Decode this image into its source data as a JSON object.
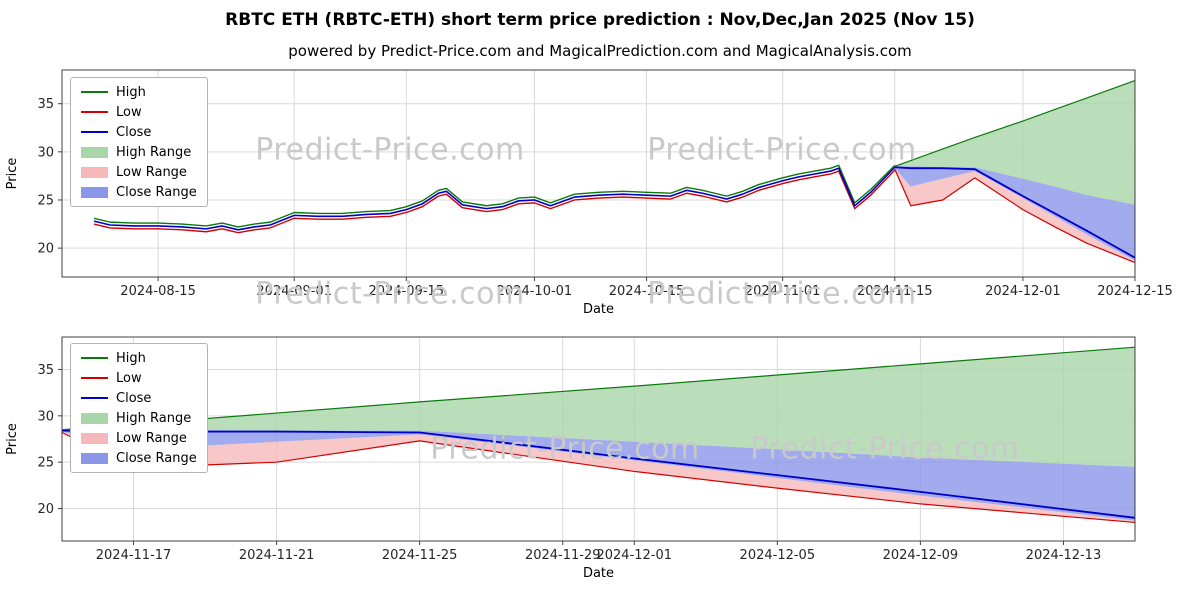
{
  "header": {
    "title": "RBTC ETH (RBTC-ETH) short term price prediction : Nov,Dec,Jan 2025 (Nov 15)",
    "subtitle": "powered by Predict-Price.com and MagicalPrediction.com and MagicalAnalysis.com"
  },
  "watermark": {
    "text": "Predict-Price.com"
  },
  "colors": {
    "high_line": "#0a7a0a",
    "low_line": "#d40000",
    "close_line": "#0000c8",
    "high_range": "#a9d6a9",
    "low_range": "#f6b9b9",
    "close_range": "#8a96e8",
    "grid": "#d9d9d9",
    "spine": "#404040"
  },
  "legend": {
    "items": [
      {
        "label": "High",
        "kind": "line",
        "color": "#0a7a0a"
      },
      {
        "label": "Low",
        "kind": "line",
        "color": "#d40000"
      },
      {
        "label": "Close",
        "kind": "line",
        "color": "#0000c8"
      },
      {
        "label": "High Range",
        "kind": "patch",
        "color": "#a9d6a9"
      },
      {
        "label": "Low Range",
        "kind": "patch",
        "color": "#f6b9b9"
      },
      {
        "label": "Close Range",
        "kind": "patch",
        "color": "#8a96e8"
      }
    ]
  },
  "chart_data": [
    {
      "type": "line",
      "title": "",
      "xlabel": "Date",
      "ylabel": "Price",
      "grid": true,
      "legend_position": "upper left",
      "ylim": [
        17,
        38.5
      ],
      "yticks": [
        20,
        25,
        30,
        35
      ],
      "x_epoch": "2024-08-03",
      "xlim_days": [
        0,
        134
      ],
      "xticks": [
        {
          "d": 12,
          "label": "2024-08-15"
        },
        {
          "d": 29,
          "label": "2024-09-01"
        },
        {
          "d": 43,
          "label": "2024-09-15"
        },
        {
          "d": 59,
          "label": "2024-10-01"
        },
        {
          "d": 73,
          "label": "2024-10-15"
        },
        {
          "d": 90,
          "label": "2024-11-01"
        },
        {
          "d": 104,
          "label": "2024-11-15"
        },
        {
          "d": 120,
          "label": "2024-12-01"
        },
        {
          "d": 134,
          "label": "2024-12-15"
        }
      ],
      "series": {
        "historical": {
          "days": [
            4,
            6,
            9,
            12,
            15,
            18,
            20,
            22,
            24,
            26,
            29,
            32,
            35,
            38,
            41,
            43,
            45,
            47,
            48,
            50,
            53,
            55,
            57,
            59,
            61,
            64,
            67,
            70,
            73,
            76,
            78,
            80,
            83,
            85,
            87,
            90,
            92,
            94,
            96,
            97,
            99,
            101,
            104
          ],
          "high": [
            23.1,
            22.7,
            22.6,
            22.6,
            22.5,
            22.3,
            22.6,
            22.2,
            22.5,
            22.7,
            23.7,
            23.6,
            23.6,
            23.8,
            23.9,
            24.3,
            24.9,
            26.0,
            26.2,
            24.8,
            24.4,
            24.6,
            25.2,
            25.3,
            24.7,
            25.6,
            25.8,
            25.9,
            25.8,
            25.7,
            26.3,
            26.0,
            25.4,
            25.9,
            26.6,
            27.3,
            27.7,
            28.0,
            28.3,
            28.6,
            24.7,
            26.1,
            28.6
          ],
          "low": [
            22.5,
            22.1,
            22.0,
            22.0,
            21.9,
            21.7,
            22.0,
            21.6,
            21.9,
            22.1,
            23.1,
            23.0,
            23.0,
            23.2,
            23.3,
            23.7,
            24.3,
            25.4,
            25.6,
            24.2,
            23.8,
            24.0,
            24.6,
            24.7,
            24.1,
            25.0,
            25.2,
            25.3,
            25.2,
            25.1,
            25.7,
            25.4,
            24.8,
            25.3,
            26.0,
            26.7,
            27.1,
            27.4,
            27.7,
            28.0,
            24.1,
            25.5,
            28.1
          ],
          "close": [
            22.8,
            22.4,
            22.3,
            22.3,
            22.2,
            22.0,
            22.3,
            21.9,
            22.2,
            22.4,
            23.4,
            23.3,
            23.3,
            23.5,
            23.6,
            24.0,
            24.6,
            25.7,
            25.9,
            24.5,
            24.1,
            24.3,
            24.9,
            25.0,
            24.4,
            25.3,
            25.5,
            25.6,
            25.5,
            25.4,
            26.0,
            25.7,
            25.1,
            25.6,
            26.3,
            27.0,
            27.4,
            27.7,
            28.0,
            28.3,
            24.4,
            25.8,
            28.4
          ]
        },
        "forecast": {
          "days": [
            104,
            106,
            110,
            114,
            120,
            124,
            128,
            134
          ],
          "close": [
            28.4,
            28.3,
            28.3,
            28.2,
            25.4,
            23.6,
            21.8,
            19.0
          ],
          "close_upper": [
            28.5,
            28.5,
            28.4,
            28.4,
            27.2,
            26.4,
            25.5,
            24.5
          ],
          "close_lower": [
            28.3,
            26.4,
            27.2,
            28.0,
            25.2,
            23.3,
            21.4,
            18.7
          ],
          "high_upper": [
            28.5,
            29.1,
            30.3,
            31.5,
            33.2,
            34.4,
            35.6,
            37.4
          ],
          "low_lower": [
            28.2,
            24.4,
            25.0,
            27.3,
            24.0,
            22.2,
            20.5,
            18.5
          ]
        }
      }
    },
    {
      "type": "line",
      "title": "",
      "xlabel": "Date",
      "ylabel": "Price",
      "grid": true,
      "legend_position": "upper left",
      "ylim": [
        16.5,
        38.5
      ],
      "yticks": [
        20,
        25,
        30,
        35
      ],
      "x_epoch": "2024-11-15",
      "xlim_days": [
        0,
        30
      ],
      "xticks": [
        {
          "d": 2,
          "label": "2024-11-17"
        },
        {
          "d": 6,
          "label": "2024-11-21"
        },
        {
          "d": 10,
          "label": "2024-11-25"
        },
        {
          "d": 14,
          "label": "2024-11-29"
        },
        {
          "d": 16,
          "label": "2024-12-01"
        },
        {
          "d": 20,
          "label": "2024-12-05"
        },
        {
          "d": 24,
          "label": "2024-12-09"
        },
        {
          "d": 28,
          "label": "2024-12-13"
        }
      ],
      "series": {
        "forecast": {
          "days": [
            0,
            2,
            6,
            10,
            16,
            20,
            24,
            30
          ],
          "close": [
            28.4,
            28.3,
            28.3,
            28.2,
            25.4,
            23.6,
            21.8,
            19.0
          ],
          "close_upper": [
            28.5,
            28.5,
            28.4,
            28.4,
            27.2,
            26.4,
            25.5,
            24.5
          ],
          "close_lower": [
            28.3,
            26.4,
            27.2,
            28.0,
            25.2,
            23.3,
            21.4,
            18.7
          ],
          "high_upper": [
            28.5,
            29.1,
            30.3,
            31.5,
            33.2,
            34.4,
            35.6,
            37.4
          ],
          "low_lower": [
            28.2,
            24.4,
            25.0,
            27.3,
            24.0,
            22.2,
            20.5,
            18.5
          ]
        }
      }
    }
  ]
}
